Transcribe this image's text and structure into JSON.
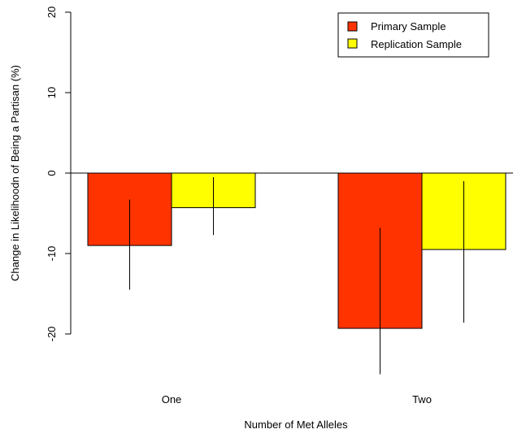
{
  "chart_data": {
    "type": "bar",
    "title": "",
    "xlabel": "Number of Met Alleles",
    "ylabel": "Change in Likelihoodn of Being a Partisan (%)",
    "categories": [
      "One",
      "Two"
    ],
    "series": [
      {
        "name": "Primary Sample",
        "color": "#ff3300",
        "values": [
          -9.0,
          -19.3
        ],
        "error_low": [
          -14.5,
          -25.0
        ],
        "error_high": [
          -3.3,
          -6.8
        ]
      },
      {
        "name": "Replication Sample",
        "color": "#ffff00",
        "values": [
          -4.3,
          -9.5
        ],
        "error_low": [
          -7.7,
          -18.6
        ],
        "error_high": [
          -0.5,
          -1.0
        ]
      }
    ],
    "ylim": [
      -26,
      20
    ],
    "yticks": [
      20,
      10,
      0,
      -10,
      -20
    ],
    "ytick_labels": [
      "20",
      "10",
      "0",
      "-10",
      "-20"
    ],
    "zero_line": true,
    "grid": false,
    "legend_position": "top-right"
  }
}
